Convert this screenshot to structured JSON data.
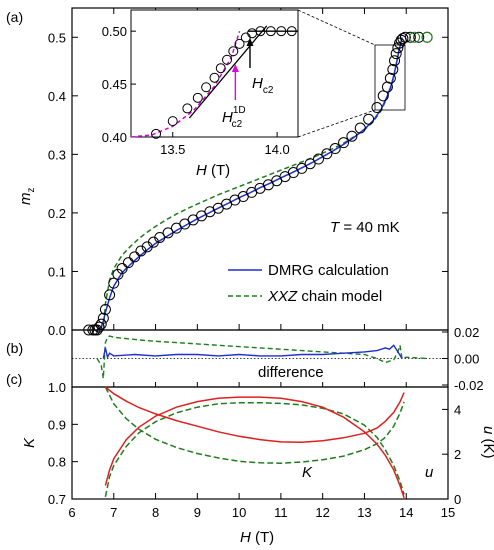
{
  "colors": {
    "axis": "#000000",
    "data": "#000000",
    "dmrg": "#1f2fd0",
    "xxz": "#1e7d1e",
    "magenta": "#e000e0",
    "red": "#e02020"
  },
  "chart_data": [
    {
      "id": "a",
      "panel_label": "(a)",
      "type": "scatter",
      "xlim": [
        6,
        15
      ],
      "ylim": [
        0.0,
        0.55
      ],
      "ylabel_main": "m",
      "ylabel_sub": "z",
      "yticks": [
        "0.0",
        "0.1",
        "0.2",
        "0.3",
        "0.4",
        "0.5"
      ],
      "annotation": {
        "prefix": "T",
        "text": " = 40 mK"
      },
      "legend": [
        {
          "label": "DMRG calculation",
          "style": "solid"
        },
        {
          "label": "XXZ",
          "label_suffix": " chain model",
          "style": "dashed"
        }
      ],
      "series": [
        {
          "name": "data",
          "kind": "markers",
          "x": [
            6.4,
            6.5,
            6.55,
            6.6,
            6.65,
            6.7,
            6.75,
            6.8,
            6.9,
            7.0,
            7.1,
            7.2,
            7.35,
            7.5,
            7.65,
            7.8,
            7.95,
            8.1,
            8.3,
            8.5,
            8.7,
            8.9,
            9.1,
            9.3,
            9.5,
            9.7,
            9.9,
            10.1,
            10.3,
            10.5,
            10.7,
            10.9,
            11.1,
            11.3,
            11.5,
            11.7,
            11.9,
            12.1,
            12.3,
            12.5,
            12.7,
            12.9,
            13.1,
            13.3,
            13.45,
            13.55,
            13.62,
            13.68,
            13.72,
            13.76,
            13.8,
            13.84,
            13.88,
            13.92,
            13.98,
            14.1,
            14.3,
            14.5
          ],
          "y": [
            0.0,
            0.0,
            0.0,
            0.0,
            0.005,
            0.01,
            0.02,
            0.035,
            0.06,
            0.08,
            0.095,
            0.105,
            0.115,
            0.125,
            0.135,
            0.142,
            0.15,
            0.158,
            0.166,
            0.174,
            0.181,
            0.188,
            0.195,
            0.202,
            0.208,
            0.215,
            0.222,
            0.228,
            0.235,
            0.242,
            0.248,
            0.255,
            0.262,
            0.269,
            0.276,
            0.284,
            0.292,
            0.301,
            0.31,
            0.32,
            0.331,
            0.345,
            0.36,
            0.38,
            0.4,
            0.415,
            0.43,
            0.445,
            0.46,
            0.472,
            0.482,
            0.49,
            0.495,
            0.498,
            0.5,
            0.5,
            0.5,
            0.5
          ]
        },
        {
          "name": "DMRG calculation",
          "kind": "line",
          "x": [
            6.6,
            6.7,
            6.75,
            6.8,
            6.9,
            7.0,
            7.2,
            7.4,
            7.6,
            7.8,
            8.0,
            8.25,
            8.5,
            8.75,
            9.0,
            9.25,
            9.5,
            9.75,
            10.0,
            10.25,
            10.5,
            10.75,
            11.0,
            11.25,
            11.5,
            11.75,
            12.0,
            12.25,
            12.5,
            12.75,
            13.0,
            13.2,
            13.4,
            13.55,
            13.65,
            13.72,
            13.78,
            13.82,
            13.87,
            13.9
          ],
          "y": [
            0.0,
            0.005,
            0.015,
            0.03,
            0.055,
            0.075,
            0.098,
            0.112,
            0.125,
            0.137,
            0.148,
            0.159,
            0.17,
            0.18,
            0.19,
            0.199,
            0.208,
            0.217,
            0.226,
            0.234,
            0.243,
            0.251,
            0.26,
            0.268,
            0.277,
            0.286,
            0.296,
            0.306,
            0.317,
            0.329,
            0.343,
            0.357,
            0.377,
            0.4,
            0.42,
            0.44,
            0.46,
            0.475,
            0.49,
            0.5
          ]
        },
        {
          "name": "XXZ chain model",
          "kind": "dashed-line",
          "x": [
            6.75,
            6.8,
            6.9,
            7.0,
            7.2,
            7.4,
            7.6,
            7.8,
            8.0,
            8.25,
            8.5,
            8.75,
            9.0,
            9.25,
            9.5,
            9.75,
            10.0,
            10.25,
            10.5,
            10.75,
            11.0,
            11.25,
            11.5,
            11.75,
            12.0,
            12.25,
            12.5,
            12.75,
            13.0,
            13.2,
            13.4,
            13.55,
            13.65,
            13.72,
            13.78,
            13.82,
            13.87,
            13.9
          ],
          "y": [
            0.0,
            0.045,
            0.085,
            0.105,
            0.128,
            0.143,
            0.156,
            0.167,
            0.177,
            0.188,
            0.198,
            0.207,
            0.215,
            0.223,
            0.231,
            0.238,
            0.245,
            0.252,
            0.259,
            0.266,
            0.273,
            0.28,
            0.287,
            0.294,
            0.302,
            0.31,
            0.319,
            0.33,
            0.342,
            0.355,
            0.375,
            0.398,
            0.418,
            0.44,
            0.46,
            0.475,
            0.49,
            0.5
          ]
        }
      ],
      "inset": {
        "xlim": [
          13.3,
          14.1
        ],
        "ylim": [
          0.4,
          0.52
        ],
        "xticks": [
          "13.5",
          "14.0"
        ],
        "yticks": [
          "0.40",
          "0.45",
          "0.50"
        ],
        "xlabel_main": "H",
        "xlabel_unit": " (T)",
        "hc2_main": "H",
        "hc2_sub": "c2",
        "hc2_1d_main": "H",
        "hc2_1d_sup": "1D",
        "hc2_1d_sub": "c2",
        "hc2_x": 13.87,
        "hc2_1d_x": 13.8,
        "data_x": [
          13.42,
          13.5,
          13.57,
          13.62,
          13.66,
          13.7,
          13.73,
          13.76,
          13.79,
          13.82,
          13.85,
          13.88,
          13.92,
          13.97,
          14.02,
          14.07
        ],
        "data_y": [
          0.403,
          0.415,
          0.427,
          0.437,
          0.447,
          0.456,
          0.465,
          0.473,
          0.481,
          0.488,
          0.494,
          0.498,
          0.5,
          0.5,
          0.5,
          0.5
        ],
        "tangent_x": [
          13.58,
          13.95
        ],
        "tangent_y": [
          0.418,
          0.505
        ],
        "flat_x": [
          13.86,
          14.1
        ],
        "flat_y": [
          0.5,
          0.5
        ],
        "magenta_x": [
          13.3,
          13.4,
          13.5,
          13.6,
          13.7,
          13.78,
          13.82
        ],
        "magenta_y": [
          0.4,
          0.402,
          0.41,
          0.425,
          0.448,
          0.475,
          0.5
        ]
      }
    },
    {
      "id": "b",
      "panel_label": "(b)",
      "type": "line",
      "xlim": [
        6,
        15
      ],
      "ylim": [
        -0.02,
        0.02
      ],
      "yticks_right": [
        "0.02",
        "0.00",
        "-0.02"
      ],
      "annotation": "difference",
      "series": [
        {
          "name": "DMRG difference",
          "kind": "line",
          "x": [
            6.75,
            6.8,
            6.85,
            6.9,
            7.0,
            7.5,
            8.0,
            8.5,
            9.0,
            9.5,
            10.0,
            10.5,
            11.0,
            11.5,
            12.0,
            12.5,
            13.0,
            13.3,
            13.5,
            13.6,
            13.7,
            13.8,
            13.9
          ],
          "y": [
            0.0,
            0.008,
            0.001,
            0.004,
            0.002,
            0.003,
            0.002,
            0.003,
            0.003,
            0.002,
            0.003,
            0.002,
            0.002,
            0.003,
            0.003,
            0.004,
            0.005,
            0.006,
            0.008,
            0.007,
            0.01,
            0.005,
            0.0
          ]
        },
        {
          "name": "XXZ difference",
          "kind": "dashed-line",
          "x": [
            6.6,
            6.7,
            6.75,
            6.8,
            6.85,
            6.9,
            7.0,
            7.3,
            7.6,
            8.0,
            8.5,
            9.0,
            9.5,
            10.0,
            10.5,
            11.0,
            11.5,
            12.0,
            12.5,
            13.0,
            13.3,
            13.5,
            13.7,
            13.8,
            13.85,
            13.9,
            14.0,
            14.5
          ],
          "y": [
            0.0,
            -0.005,
            -0.015,
            0.012,
            0.016,
            0.017,
            0.016,
            0.015,
            0.014,
            0.013,
            0.012,
            0.011,
            0.01,
            0.009,
            0.008,
            0.007,
            0.006,
            0.005,
            0.004,
            0.003,
            0.0,
            -0.003,
            -0.001,
            0.005,
            0.01,
            0.0,
            0.001,
            0.0
          ]
        }
      ]
    },
    {
      "id": "c",
      "panel_label": "(c)",
      "type": "line",
      "xlim": [
        6,
        15
      ],
      "xticks": [
        "6",
        "7",
        "8",
        "9",
        "10",
        "11",
        "12",
        "13",
        "14",
        "15"
      ],
      "xlabel_main": "H",
      "xlabel_unit": " (T)",
      "ylim_left": [
        0.7,
        1.0
      ],
      "ylim_right": [
        0,
        5
      ],
      "yticks_left": [
        "0.7",
        "0.8",
        "0.9",
        "1.0"
      ],
      "yticks_right": [
        "0",
        "2",
        "4"
      ],
      "ylabel_left": "K",
      "ylabel_right_main": "u",
      "ylabel_right_unit": " (K)",
      "label_K": "K",
      "label_u": "u",
      "K_x": [
        6.8,
        7.0,
        7.3,
        7.6,
        8.0,
        8.5,
        9.0,
        9.5,
        10.0,
        10.5,
        11.0,
        11.5,
        12.0,
        12.5,
        13.0,
        13.3,
        13.5,
        13.7,
        13.85,
        13.95
      ],
      "K_red": [
        1.0,
        0.982,
        0.962,
        0.945,
        0.928,
        0.91,
        0.895,
        0.88,
        0.868,
        0.859,
        0.853,
        0.852,
        0.856,
        0.864,
        0.876,
        0.89,
        0.908,
        0.932,
        0.96,
        0.985
      ],
      "K_green": [
        1.0,
        0.955,
        0.915,
        0.887,
        0.86,
        0.838,
        0.822,
        0.81,
        0.801,
        0.797,
        0.796,
        0.799,
        0.805,
        0.815,
        0.832,
        0.848,
        0.865,
        0.895,
        0.93,
        0.96
      ],
      "u_x": [
        6.8,
        6.9,
        7.0,
        7.3,
        7.6,
        8.0,
        8.5,
        9.0,
        9.5,
        10.0,
        10.5,
        11.0,
        11.5,
        12.0,
        12.5,
        13.0,
        13.3,
        13.5,
        13.7,
        13.85,
        13.95
      ],
      "u_red": [
        0.6,
        1.3,
        1.8,
        2.65,
        3.2,
        3.7,
        4.1,
        4.35,
        4.5,
        4.55,
        4.55,
        4.5,
        4.35,
        4.1,
        3.65,
        3.0,
        2.45,
        1.95,
        1.3,
        0.6,
        0.05
      ],
      "u_green": [
        0.1,
        1.0,
        1.5,
        2.35,
        2.95,
        3.45,
        3.85,
        4.1,
        4.25,
        4.3,
        4.3,
        4.27,
        4.2,
        4.05,
        3.8,
        3.3,
        2.75,
        2.2,
        1.5,
        0.8,
        0.2
      ]
    }
  ]
}
